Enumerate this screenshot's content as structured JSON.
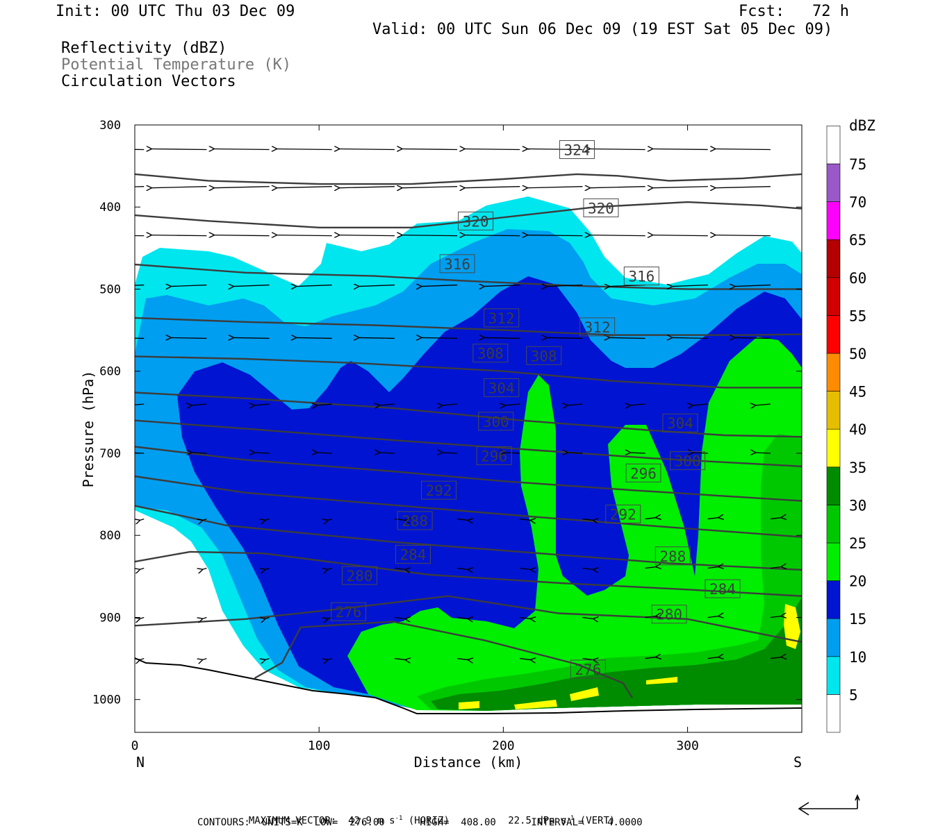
{
  "header": {
    "init": "Init: 00 UTC Thu 03 Dec 09",
    "fcst": "Fcst:   72 h",
    "valid": "Valid: 00 UTC Sun 06 Dec 09 (19 EST Sat 05 Dec 09)",
    "field1": "Reflectivity (dBZ)",
    "field2": "Potential Temperature (K)",
    "field3": "Circulation Vectors"
  },
  "footer": {
    "max_vector_label": "MAXIMUM VECTOR:",
    "max_horiz_value": "42.9 m s",
    "horiz_unit": "(HORIZ)",
    "max_vert_value": "22.5 dPa s",
    "vert_unit": "(VERT)",
    "contours": "CONTOURS:  UNITS=K  LOW=  276.00      HIGH=  408.00      INTERVAL=    4.0000"
  },
  "chart_data": {
    "type": "cross-section",
    "xlabel": "Distance (km)",
    "ylabel": "Pressure (hPa)",
    "x_ticks": [
      0,
      100,
      200,
      300
    ],
    "x_end_labels": {
      "left": "N",
      "right": "S"
    },
    "y_ticks": [
      300,
      400,
      500,
      600,
      700,
      800,
      900,
      1000
    ],
    "xlim": [
      0,
      362
    ],
    "ylim": [
      1040,
      300
    ],
    "colorbar": {
      "title": "dBZ",
      "levels": [
        5,
        10,
        15,
        20,
        25,
        30,
        35,
        40,
        45,
        50,
        55,
        60,
        65,
        70,
        75
      ],
      "colors": [
        "#ffffff",
        "#00e6ee",
        "#009ef0",
        "#0014d2",
        "#00ee00",
        "#00c800",
        "#008c00",
        "#ffff00",
        "#e6be00",
        "#ff8c00",
        "#ff0000",
        "#d20000",
        "#b40000",
        "#ff00ff",
        "#9a58c8",
        "#ffffff"
      ]
    },
    "theta_contours": [
      {
        "label": "324",
        "points": [
          [
            0,
            360
          ],
          [
            40,
            368
          ],
          [
            100,
            372
          ],
          [
            150,
            372
          ],
          [
            200,
            366
          ],
          [
            240,
            360
          ],
          [
            262,
            362
          ],
          [
            290,
            368
          ],
          [
            330,
            365
          ],
          [
            362,
            360
          ]
        ],
        "label_at": [
          240,
          330
        ]
      },
      {
        "label": "320",
        "points": [
          [
            0,
            410
          ],
          [
            40,
            417
          ],
          [
            100,
            425
          ],
          [
            150,
            425
          ],
          [
            175,
            419
          ],
          [
            250,
            400
          ],
          [
            300,
            394
          ],
          [
            340,
            398
          ],
          [
            362,
            402
          ]
        ],
        "label_at": [
          185,
          417
        ]
      },
      {
        "label": "320",
        "points": [],
        "label_at": [
          253,
          401
        ]
      },
      {
        "label": "316",
        "points": [
          [
            0,
            470
          ],
          [
            60,
            480
          ],
          [
            130,
            484
          ],
          [
            180,
            490
          ],
          [
            240,
            496
          ],
          [
            300,
            500
          ],
          [
            362,
            500
          ]
        ],
        "label_at": [
          175,
          469
        ]
      },
      {
        "label": "316",
        "points": [],
        "label_at": [
          275,
          484
        ]
      },
      {
        "label": "312",
        "points": [
          [
            0,
            535
          ],
          [
            60,
            540
          ],
          [
            130,
            544
          ],
          [
            200,
            550
          ],
          [
            260,
            556
          ],
          [
            330,
            556
          ],
          [
            362,
            555
          ]
        ],
        "label_at": [
          199,
          535
        ]
      },
      {
        "label": "312",
        "points": [],
        "label_at": [
          251,
          546
        ]
      },
      {
        "label": "308",
        "points": [
          [
            0,
            582
          ],
          [
            60,
            585
          ],
          [
            120,
            590
          ],
          [
            200,
            600
          ],
          [
            260,
            612
          ],
          [
            320,
            620
          ],
          [
            362,
            620
          ]
        ],
        "label_at": [
          193,
          578
        ]
      },
      {
        "label": "308",
        "points": [],
        "label_at": [
          222,
          581
        ]
      },
      {
        "label": "304",
        "points": [
          [
            0,
            626
          ],
          [
            60,
            633
          ],
          [
            140,
            645
          ],
          [
            210,
            660
          ],
          [
            280,
            672
          ],
          [
            320,
            678
          ],
          [
            362,
            680
          ]
        ],
        "label_at": [
          199,
          620
        ]
      },
      {
        "label": "304",
        "points": [],
        "label_at": [
          296,
          663
        ]
      },
      {
        "label": "300",
        "points": [
          [
            0,
            660
          ],
          [
            60,
            670
          ],
          [
            140,
            684
          ],
          [
            210,
            695
          ],
          [
            280,
            706
          ],
          [
            362,
            716
          ]
        ],
        "label_at": [
          196,
          661
        ]
      },
      {
        "label": "300",
        "points": [],
        "label_at": [
          300,
          709
        ]
      },
      {
        "label": "296",
        "points": [
          [
            0,
            692
          ],
          [
            60,
            708
          ],
          [
            140,
            722
          ],
          [
            200,
            734
          ],
          [
            270,
            745
          ],
          [
            362,
            758
          ]
        ],
        "label_at": [
          195,
          703
        ]
      },
      {
        "label": "296",
        "points": [],
        "label_at": [
          276,
          724
        ]
      },
      {
        "label": "292",
        "points": [
          [
            0,
            728
          ],
          [
            60,
            748
          ],
          [
            150,
            765
          ],
          [
            220,
            778
          ],
          [
            290,
            790
          ],
          [
            362,
            802
          ]
        ],
        "label_at": [
          165,
          745
        ]
      },
      {
        "label": "292",
        "points": [],
        "label_at": [
          265,
          774
        ]
      },
      {
        "label": "288",
        "points": [
          [
            0,
            764
          ],
          [
            50,
            788
          ],
          [
            140,
            808
          ],
          [
            220,
            822
          ],
          [
            290,
            834
          ],
          [
            362,
            842
          ]
        ],
        "label_at": [
          152,
          782
        ]
      },
      {
        "label": "288",
        "points": [],
        "label_at": [
          292,
          825
        ]
      },
      {
        "label": "284",
        "points": [
          [
            0,
            832
          ],
          [
            30,
            820
          ],
          [
            70,
            822
          ],
          [
            160,
            848
          ],
          [
            230,
            858
          ],
          [
            300,
            866
          ],
          [
            362,
            874
          ]
        ],
        "label_at": [
          151,
          823
        ]
      },
      {
        "label": "284",
        "points": [],
        "label_at": [
          319,
          865
        ]
      },
      {
        "label": "280",
        "points": [
          [
            0,
            910
          ],
          [
            60,
            902
          ],
          [
            110,
            890
          ],
          [
            170,
            874
          ],
          [
            230,
            895
          ],
          [
            300,
            902
          ],
          [
            362,
            930
          ]
        ],
        "label_at": [
          122,
          849
        ]
      },
      {
        "label": "280",
        "points": [],
        "label_at": [
          290,
          896
        ]
      },
      {
        "label": "276",
        "points": [
          [
            65,
            974
          ],
          [
            80,
            955
          ],
          [
            90,
            912
          ],
          [
            140,
            905
          ],
          [
            190,
            928
          ],
          [
            240,
            957
          ],
          [
            265,
            980
          ],
          [
            270,
            998
          ]
        ],
        "label_at": [
          116,
          893
        ]
      },
      {
        "label": "276",
        "points": [],
        "label_at": [
          246,
          963
        ]
      }
    ]
  }
}
